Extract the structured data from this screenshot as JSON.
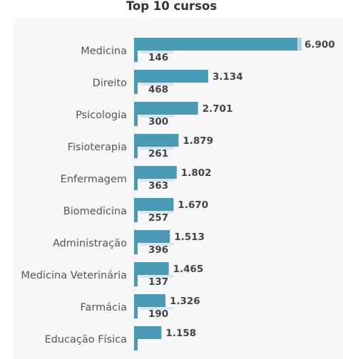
{
  "chart_data": {
    "type": "bar",
    "orientation": "horizontal",
    "title": "Top 10 cursos",
    "categories": [
      "Medicina",
      "Direito",
      "Psicologia",
      "Fisioterapia",
      "Enfermagem",
      "Biomedicina",
      "Administração",
      "Medicina Veterinária",
      "Farmácia",
      "Educação Física"
    ],
    "series": [
      {
        "values": [
          6900,
          3134,
          2701,
          1879,
          1802,
          1670,
          1513,
          1465,
          1326,
          1158
        ],
        "labels": [
          "6.900",
          "3.134",
          "2.701",
          "1.879",
          "1.802",
          "1.670",
          "1.513",
          "1.465",
          "1.326",
          "1.158"
        ],
        "color": "#4a9ab5"
      },
      {
        "values": [
          146,
          468,
          300,
          261,
          363,
          257,
          396,
          137,
          190,
          null
        ],
        "labels": [
          "146",
          "468",
          "300",
          "261",
          "363",
          "257",
          "396",
          "137",
          "190",
          ""
        ],
        "color": "#4a9ab5"
      }
    ],
    "xlim": [
      0,
      6900
    ],
    "grid": false,
    "legend": "none"
  }
}
